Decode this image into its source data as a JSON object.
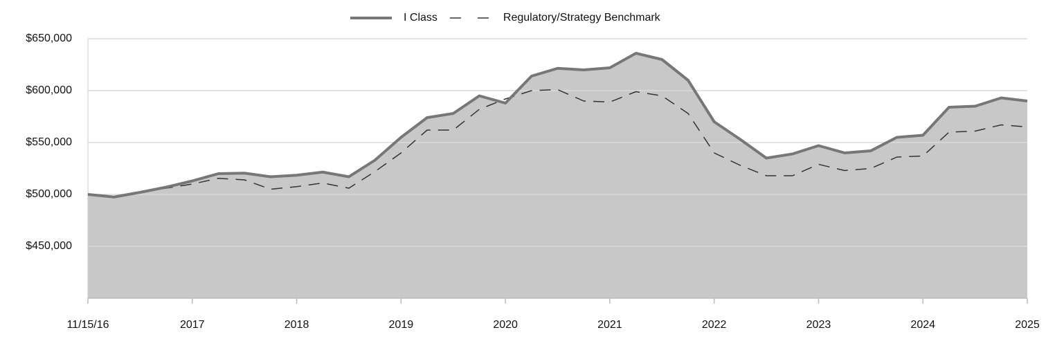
{
  "chart_data": {
    "type": "area-line",
    "x": [
      0,
      0.25,
      0.5,
      0.75,
      1,
      1.25,
      1.5,
      1.75,
      2,
      2.25,
      2.5,
      2.75,
      3,
      3.25,
      3.5,
      3.75,
      4,
      4.25,
      4.5,
      4.75,
      5,
      5.25,
      5.5,
      5.75,
      6,
      6.25,
      6.5,
      6.75,
      7,
      7.25,
      7.5,
      7.75,
      8,
      8.25,
      8.5,
      8.75,
      9
    ],
    "series": [
      {
        "name": "I Class",
        "color": "#777777",
        "fill": "#c8c8c8",
        "style": "solid",
        "values": [
          500000,
          497500,
          502000,
          507000,
          513000,
          520000,
          520500,
          517000,
          518500,
          521500,
          517000,
          533000,
          555000,
          574000,
          578000,
          595000,
          588000,
          614000,
          621500,
          620000,
          622000,
          636000,
          630000,
          610000,
          570000,
          553000,
          535000,
          539000,
          547000,
          540000,
          542000,
          555000,
          557000,
          584000,
          585000,
          593000,
          590000
        ]
      },
      {
        "name": "Regulatory/Strategy Benchmark",
        "color": "#333333",
        "style": "dashed",
        "values": [
          500000,
          498000,
          503000,
          506000,
          510000,
          515500,
          514000,
          505000,
          507500,
          511000,
          506000,
          522000,
          540000,
          562000,
          562000,
          582000,
          592000,
          600000,
          601000,
          590000,
          589000,
          599000,
          595000,
          578000,
          540000,
          528000,
          518000,
          518000,
          529000,
          523000,
          525000,
          536000,
          537000,
          560000,
          561000,
          567000,
          565000
        ]
      }
    ],
    "xlim": [
      0,
      9
    ],
    "xticks": [
      {
        "value": 0,
        "label": "11/15/16"
      },
      {
        "value": 1,
        "label": "2017"
      },
      {
        "value": 2,
        "label": "2018"
      },
      {
        "value": 3,
        "label": "2019"
      },
      {
        "value": 4,
        "label": "2020"
      },
      {
        "value": 5,
        "label": "2021"
      },
      {
        "value": 6,
        "label": "2022"
      },
      {
        "value": 7,
        "label": "2023"
      },
      {
        "value": 8,
        "label": "2024"
      },
      {
        "value": 9,
        "label": "2025"
      }
    ],
    "ylim": [
      400000,
      650000
    ],
    "yticks": [
      {
        "value": 450000,
        "label": "$450,000"
      },
      {
        "value": 500000,
        "label": "$500,000"
      },
      {
        "value": 550000,
        "label": "$550,000"
      },
      {
        "value": 600000,
        "label": "$600,000"
      },
      {
        "value": 650000,
        "label": "$650,000"
      }
    ],
    "grid": true
  }
}
